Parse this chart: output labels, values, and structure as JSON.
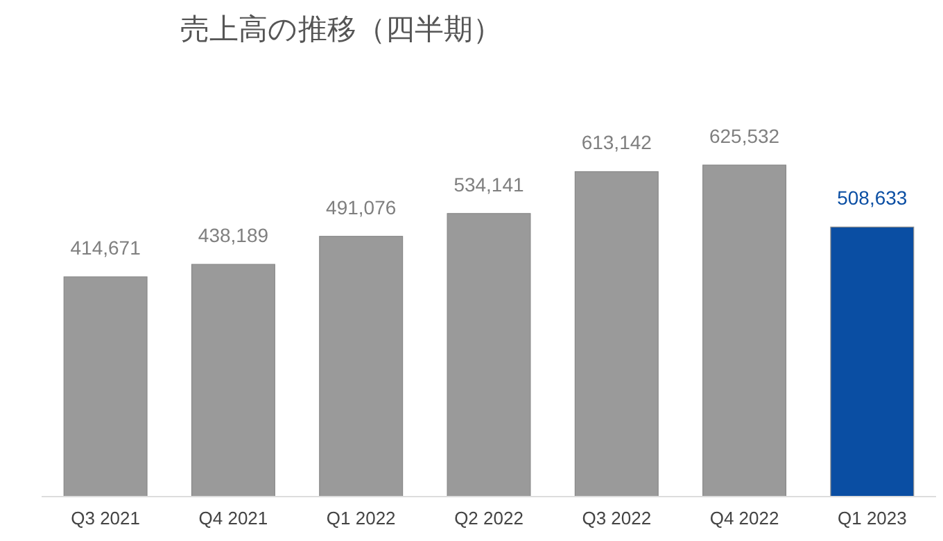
{
  "chart_data": {
    "type": "bar",
    "title": "売上高の推移（四半期）",
    "categories": [
      "Q3 2021",
      "Q4 2021",
      "Q1 2022",
      "Q2 2022",
      "Q3 2022",
      "Q4 2022",
      "Q1 2023"
    ],
    "values": [
      414671,
      438189,
      491076,
      534141,
      613142,
      625532,
      508633
    ],
    "colors": [
      "#9a9a9a",
      "#9a9a9a",
      "#9a9a9a",
      "#9a9a9a",
      "#9a9a9a",
      "#9a9a9a",
      "#0a4ea3"
    ],
    "value_labels": [
      "414,671",
      "438,189",
      "491,076",
      "534,141",
      "613,142",
      "625,532",
      "508,633"
    ]
  }
}
